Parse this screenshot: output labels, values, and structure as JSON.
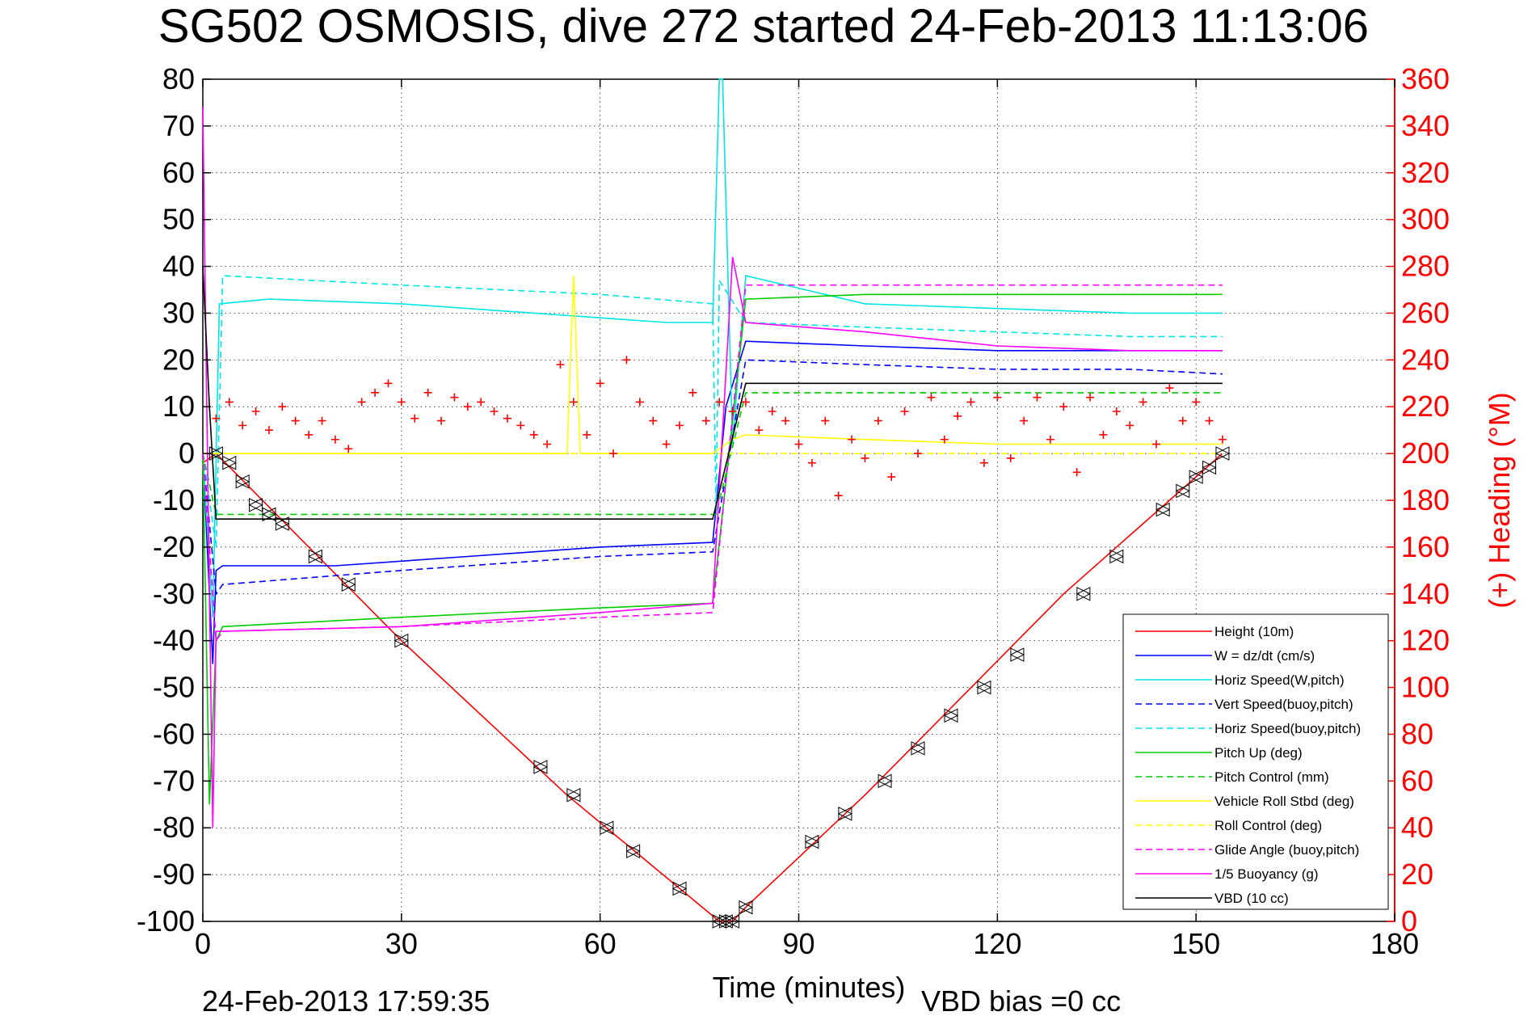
{
  "chart_data": {
    "type": "line",
    "title": "SG502 OSMOSIS, dive 272 started 24-Feb-2013 11:13:06",
    "xlabel": "Time (minutes)",
    "ylabel": "",
    "y2label": "(+) Heading (°M)",
    "xlim": [
      0,
      180
    ],
    "ylim": [
      -100,
      80
    ],
    "y2lim": [
      0,
      360
    ],
    "xticks": [
      "0",
      "30",
      "60",
      "90",
      "120",
      "150",
      "180"
    ],
    "yticks": [
      "80",
      "70",
      "60",
      "50",
      "40",
      "30",
      "20",
      "10",
      "0",
      "-10",
      "-20",
      "-30",
      "-40",
      "-50",
      "-60",
      "-70",
      "-80",
      "-90",
      "-100"
    ],
    "y2ticks": [
      "360",
      "340",
      "320",
      "300",
      "280",
      "260",
      "240",
      "220",
      "200",
      "180",
      "160",
      "140",
      "120",
      "100",
      "80",
      "60",
      "40",
      "20",
      "0"
    ],
    "grid": true,
    "legend_position": "bottom-right",
    "footer_left": "24-Feb-2013 17:59:35",
    "footer_right": "VBD bias =0 cc",
    "series": [
      {
        "name": "Height (10m)",
        "color": "#ff0000",
        "style": "solid",
        "x": [
          0,
          2,
          30,
          55,
          78,
          80,
          82,
          100,
          130,
          154
        ],
        "y": [
          -2,
          0,
          -40,
          -73,
          -100,
          -100,
          -97,
          -73,
          -30,
          0
        ]
      },
      {
        "name": "W = dz/dt (cm/s)",
        "color": "#0000ff",
        "style": "solid",
        "x": [
          0,
          1.5,
          2,
          3,
          20,
          40,
          60,
          77,
          79,
          82,
          100,
          120,
          140,
          154
        ],
        "y": [
          0,
          -45,
          -25,
          -24,
          -24,
          -22,
          -20,
          -19,
          10,
          24,
          23,
          22,
          22,
          22
        ]
      },
      {
        "name": "Horiz Speed(W,pitch)",
        "color": "#00e5e5",
        "style": "solid",
        "x": [
          0,
          1.5,
          2.5,
          10,
          30,
          50,
          60,
          70,
          77,
          78,
          78.5,
          80,
          82,
          100,
          120,
          140,
          154
        ],
        "y": [
          0,
          -35,
          32,
          33,
          32,
          30,
          29,
          28,
          28,
          80,
          80,
          2,
          38,
          32,
          31,
          30,
          30
        ]
      },
      {
        "name": "Vert Speed(buoy,pitch)",
        "color": "#0000ff",
        "style": "dashed",
        "x": [
          0,
          2,
          3,
          30,
          60,
          77,
          82,
          100,
          120,
          140,
          154
        ],
        "y": [
          0,
          -30,
          -28,
          -25,
          -22,
          -21,
          20,
          19,
          18,
          18,
          17
        ]
      },
      {
        "name": "Horiz Speed(buoy,pitch)",
        "color": "#00e5e5",
        "style": "dashed",
        "x": [
          0,
          2,
          3,
          30,
          60,
          77,
          77.5,
          78,
          82,
          100,
          120,
          140,
          154
        ],
        "y": [
          0,
          -20,
          38,
          36,
          34,
          32,
          -12,
          37,
          28,
          27,
          26,
          25,
          25
        ]
      },
      {
        "name": "Pitch Up (deg)",
        "color": "#00cc00",
        "style": "solid",
        "x": [
          0,
          1,
          2,
          3,
          30,
          60,
          77,
          82,
          100,
          120,
          140,
          154
        ],
        "y": [
          0,
          -75,
          -40,
          -37,
          -35,
          -33,
          -32,
          33,
          34,
          34,
          34,
          34
        ]
      },
      {
        "name": "Pitch Control (mm)",
        "color": "#00cc00",
        "style": "dashed",
        "x": [
          0,
          2,
          3,
          30,
          60,
          77,
          77.5,
          82,
          100,
          120,
          140,
          154
        ],
        "y": [
          0,
          -13,
          -13,
          -13,
          -13,
          -13,
          -13,
          13,
          13,
          13,
          13,
          13
        ]
      },
      {
        "name": "Vehicle Roll Stbd (deg)",
        "color": "#ffff00",
        "style": "solid",
        "x": [
          0,
          3,
          20,
          40,
          55,
          56,
          57,
          60,
          77,
          80,
          82,
          100,
          120,
          140,
          154
        ],
        "y": [
          0,
          0,
          0,
          0,
          0,
          38,
          0,
          0,
          0,
          3,
          4,
          3,
          2,
          2,
          2
        ]
      },
      {
        "name": "Roll Control (deg)",
        "color": "#ffff00",
        "style": "dashed",
        "x": [
          0,
          3,
          30,
          60,
          77,
          82,
          100,
          120,
          140,
          154
        ],
        "y": [
          0,
          0,
          0,
          0,
          0,
          0,
          0,
          0,
          0,
          0
        ]
      },
      {
        "name": "Glide Angle (buoy,pitch)",
        "color": "#ff00ff",
        "style": "dashed",
        "x": [
          0,
          2,
          3,
          30,
          60,
          77,
          82,
          100,
          120,
          140,
          154
        ],
        "y": [
          0,
          -40,
          -38,
          -37,
          -35,
          -34,
          36,
          36,
          36,
          36,
          36
        ]
      },
      {
        "name": "1/5 Buoyancy (g)",
        "color": "#ff00ff",
        "style": "solid",
        "x": [
          0,
          0.5,
          1.5,
          2,
          3,
          30,
          60,
          77,
          80,
          82,
          100,
          120,
          140,
          154
        ],
        "y": [
          74,
          20,
          -80,
          -38,
          -38,
          -37,
          -34,
          -32,
          42,
          28,
          26,
          23,
          22,
          22
        ]
      },
      {
        "name": "VBD (10 cc)",
        "color": "#000000",
        "style": "solid",
        "x": [
          0,
          1,
          2,
          77,
          82,
          100,
          154
        ],
        "y": [
          40,
          10,
          -14,
          -14,
          15,
          15,
          15
        ]
      }
    ],
    "heading_series": {
      "name": "Heading",
      "color": "#ff0000",
      "marker": "+",
      "axis": "right",
      "x": [
        2,
        4,
        6,
        8,
        10,
        12,
        14,
        16,
        18,
        20,
        22,
        24,
        26,
        28,
        30,
        32,
        34,
        36,
        38,
        40,
        42,
        44,
        46,
        48,
        50,
        52,
        54,
        56,
        58,
        60,
        62,
        64,
        66,
        68,
        70,
        72,
        74,
        76,
        78,
        80,
        82,
        84,
        86,
        88,
        90,
        92,
        94,
        96,
        98,
        100,
        102,
        104,
        106,
        108,
        110,
        112,
        114,
        116,
        118,
        120,
        122,
        124,
        126,
        128,
        130,
        132,
        134,
        136,
        138,
        140,
        142,
        144,
        146,
        148,
        150,
        152,
        154
      ],
      "y": [
        215,
        222,
        212,
        218,
        210,
        220,
        214,
        208,
        214,
        206,
        202,
        222,
        226,
        230,
        222,
        215,
        226,
        214,
        224,
        220,
        222,
        218,
        215,
        212,
        208,
        204,
        238,
        222,
        208,
        230,
        200,
        240,
        222,
        214,
        204,
        212,
        226,
        214,
        222,
        218,
        222,
        210,
        218,
        214,
        204,
        196,
        214,
        182,
        206,
        198,
        214,
        190,
        218,
        200,
        224,
        206,
        216,
        222,
        196,
        224,
        198,
        214,
        224,
        206,
        220,
        192,
        224,
        208,
        218,
        212,
        222,
        204,
        228,
        214,
        222,
        214,
        206
      ]
    },
    "vbd_markers": {
      "marker": "triangle",
      "x": [
        2,
        4,
        6,
        8,
        10,
        12,
        17,
        22,
        30,
        51,
        56,
        61,
        65,
        72,
        78,
        79,
        80,
        82,
        92,
        97,
        103,
        108,
        113,
        118,
        123,
        133,
        138,
        145,
        148,
        150,
        152,
        154
      ],
      "y": [
        0,
        -2,
        -6,
        -11,
        -13,
        -15,
        -22,
        -28,
        -40,
        -67,
        -73,
        -80,
        -85,
        -93,
        -100,
        -100,
        -100,
        -97,
        -83,
        -77,
        -70,
        -63,
        -56,
        -50,
        -43,
        -30,
        -22,
        -12,
        -8,
        -5,
        -3,
        0
      ]
    }
  }
}
